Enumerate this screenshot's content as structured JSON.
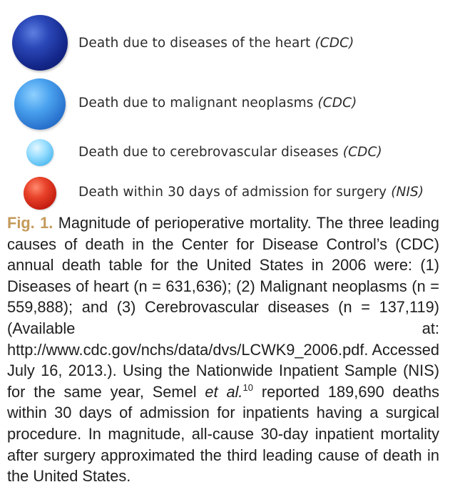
{
  "legend": {
    "items": [
      {
        "label": "Death due to diseases of the heart",
        "source": "(CDC)",
        "color": "#14278a"
      },
      {
        "label": "Death due to malignant neoplasms",
        "source": "(CDC)",
        "color": "#2a74cf"
      },
      {
        "label": "Death due to cerebrovascular diseases",
        "source": "(CDC)",
        "color": "#55bdf2"
      },
      {
        "label": "Death within 30 days of admission for surgery",
        "source": "(NIS)",
        "color": "#c21c10"
      }
    ]
  },
  "caption": {
    "fig_label": "Fig. 1.",
    "part1": "Magnitude of perioperative mortality. The three leading causes of death in the Center for Disease Control’s (CDC) annual death table for the United States in 2006 were: (1) Diseases of heart (n = 631,636); (2) Malignant neoplasms (n = 559,888); and (3) Cerebrovascular diseases (n = 137,119) (Available at: http://www.cdc.gov/nchs/data/dvs/LCWK9_2006.pdf. Accessed July 16, 2013.).  Using the Nationwide Inpatient Sample (NIS) for the same year, Semel",
    "etal": "et al.",
    "ref": "10",
    "part2": "reported 189,690 deaths within 30 days of admission for inpatients having a surgical procedure. In magnitude, all-cause 30-day inpatient mortality after surgery approximated the third leading cause of death in the United States."
  }
}
